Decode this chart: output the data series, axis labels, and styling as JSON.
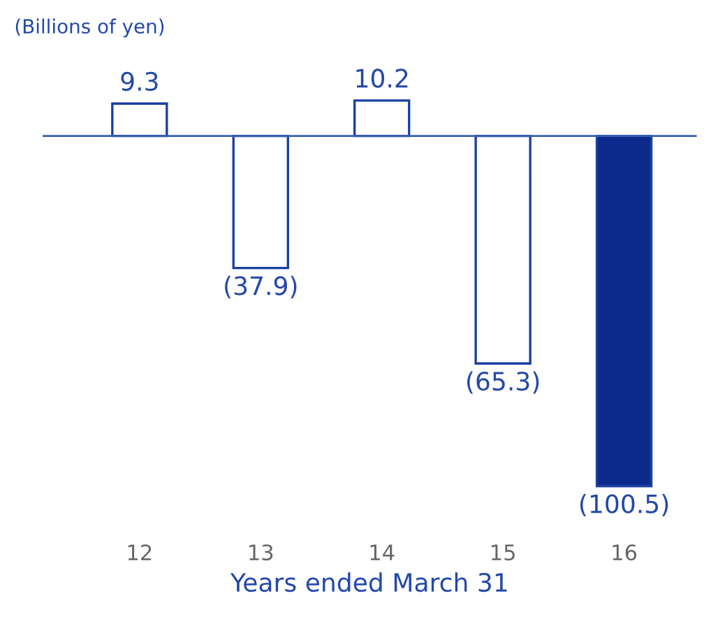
{
  "chart_data": {
    "type": "bar",
    "ylabel": "(Billions of yen)",
    "xlabel": "Years ended March 31",
    "categories": [
      "12",
      "13",
      "14",
      "15",
      "16"
    ],
    "values": [
      9.3,
      -37.9,
      10.2,
      -65.3,
      -100.5
    ],
    "colors": [
      "#ffffff",
      "#ffffff",
      "#ffffff",
      "#ffffff",
      "#0b2a8c"
    ],
    "value_labels": [
      "9.3",
      "(37.9)",
      "10.2",
      "(65.3)",
      "(100.5)"
    ],
    "ref_lines": [
      {
        "axis": "y",
        "value": 0,
        "color": "#3a5fb0"
      }
    ],
    "grid": false,
    "legend": false
  }
}
